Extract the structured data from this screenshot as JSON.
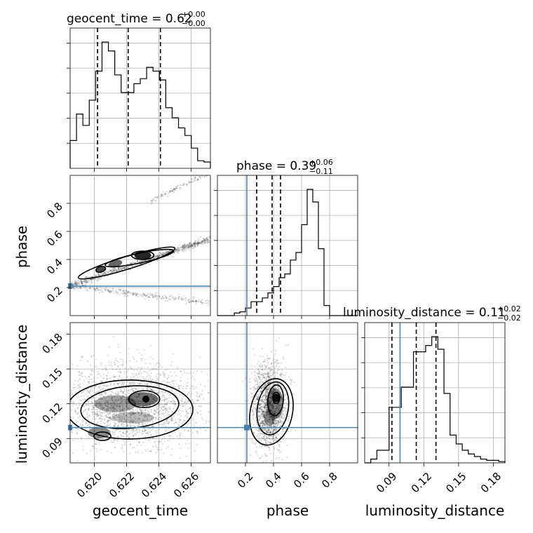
{
  "chart_data": {
    "type": "corner",
    "parameters": [
      {
        "name": "geocent_time",
        "xlabel": "geocent_time",
        "title_main": "geocent_time = 0.62",
        "title_plus": "+0.00",
        "title_minus": "−0.00",
        "range": [
          0.6185,
          0.6272
        ],
        "ticks": [
          0.62,
          0.622,
          0.624,
          0.626
        ],
        "tick_labels": [
          "0.620",
          "0.622",
          "0.624",
          "0.626"
        ],
        "quantiles": [
          0.6202,
          0.6221,
          0.6241
        ],
        "injection": null,
        "histogram": [
          0.22,
          0.43,
          0.34,
          0.54,
          0.77,
          1.0,
          0.93,
          0.74,
          0.6,
          0.6,
          0.67,
          0.71,
          0.8,
          0.77,
          0.7,
          0.48,
          0.4,
          0.32,
          0.26,
          0.16,
          0.06,
          0.05
        ]
      },
      {
        "name": "phase",
        "xlabel": "phase",
        "ylabel": "phase",
        "title_main": "phase = 0.39",
        "title_plus": "+0.06",
        "title_minus": "−0.11",
        "range": [
          0.0,
          1.0
        ],
        "ticks": [
          0.2,
          0.4,
          0.6,
          0.8
        ],
        "tick_labels": [
          "0.2",
          "0.4",
          "0.6",
          "0.8"
        ],
        "quantiles": [
          0.28,
          0.39,
          0.45
        ],
        "injection": 0.21,
        "histogram": [
          0.0,
          0.0,
          0.0,
          0.02,
          0.03,
          0.06,
          0.11,
          0.11,
          0.14,
          0.18,
          0.23,
          0.3,
          0.33,
          0.44,
          0.5,
          0.72,
          1.0,
          0.9,
          0.53,
          0.08,
          0.0,
          0.0,
          0.0,
          0.0,
          0.0
        ]
      },
      {
        "name": "luminosity_distance",
        "xlabel": "luminosity_distance",
        "ylabel": "luminosity_distance",
        "title_main": "luminosity_distance = 0.11",
        "title_plus": "+0.02",
        "title_minus": "−0.02",
        "range": [
          0.069,
          0.19
        ],
        "ticks": [
          0.09,
          0.12,
          0.15,
          0.18
        ],
        "tick_labels": [
          "0.09",
          "0.12",
          "0.15",
          "0.18"
        ],
        "quantiles": [
          0.0925,
          0.1135,
          0.1305
        ],
        "injection": 0.0995,
        "histogram": [
          0.0,
          0.03,
          0.1,
          0.1,
          0.44,
          0.44,
          0.6,
          0.6,
          0.88,
          0.88,
          0.93,
          1.0,
          0.9,
          0.55,
          0.22,
          0.15,
          0.1,
          0.07,
          0.05,
          0.03,
          0.02,
          0.02,
          0.01
        ]
      }
    ],
    "pairs": [
      {
        "x": "geocent_time",
        "y": "phase",
        "injection_y": 0.21
      },
      {
        "x": "geocent_time",
        "y": "luminosity_distance",
        "injection_y": 0.0995
      },
      {
        "x": "phase",
        "y": "luminosity_distance",
        "injection_x": 0.21,
        "injection_y": 0.0995
      }
    ],
    "grid": true,
    "colors": {
      "hist": "#000000",
      "quantile_line": "#000000",
      "injection": "#4682b4",
      "grid": "#b0b0b0",
      "scatter": "#000000"
    }
  }
}
